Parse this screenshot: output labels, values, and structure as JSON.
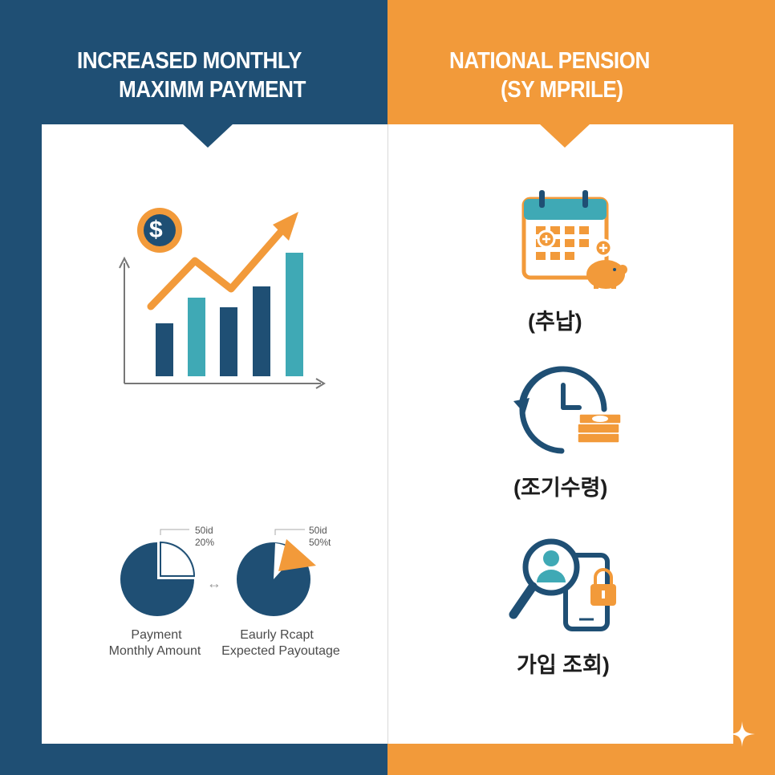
{
  "left_panel": {
    "title_line1": "INCREASED MONTHLY",
    "title_line2": "MAXIMM PAYMENT",
    "dollar_symbol": "$",
    "chart_icon": "bar-chart-upward-trend-icon",
    "pie_left": {
      "callout_line1": "50id",
      "callout_line2": "20%",
      "label_line1": "Payment",
      "label_line2": "Monthly Amount"
    },
    "compare_arrow": "↔",
    "pie_right": {
      "callout_line1": "50id",
      "callout_line2": "50%t",
      "label_line1": "Eaurly Rcapt",
      "label_line2": "Expected Payoutage"
    }
  },
  "right_panel": {
    "title_line1": "NATIONAL PENSION",
    "title_line2": "(SY MPRILE)",
    "items": [
      {
        "icon": "calendar-piggy-bank-icon",
        "label": "(추납)"
      },
      {
        "icon": "clock-money-icon",
        "label": "(조기수령)"
      },
      {
        "icon": "search-user-phone-lock-icon",
        "label": "가입 조회)"
      }
    ]
  },
  "colors": {
    "navy": "#1f4f74",
    "orange": "#f29a3a",
    "teal": "#3fa9b5",
    "white": "#ffffff"
  }
}
